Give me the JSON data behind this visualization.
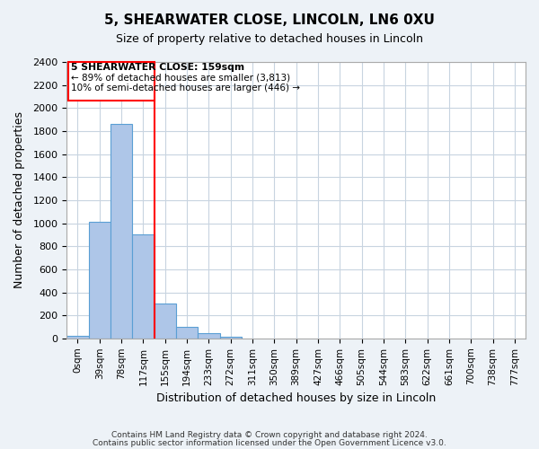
{
  "title1": "5, SHEARWATER CLOSE, LINCOLN, LN6 0XU",
  "title2": "Size of property relative to detached houses in Lincoln",
  "xlabel": "Distribution of detached houses by size in Lincoln",
  "ylabel": "Number of detached properties",
  "footer1": "Contains HM Land Registry data © Crown copyright and database right 2024.",
  "footer2": "Contains public sector information licensed under the Open Government Licence v3.0.",
  "bin_labels": [
    "0sqm",
    "39sqm",
    "78sqm",
    "117sqm",
    "155sqm",
    "194sqm",
    "233sqm",
    "272sqm",
    "311sqm",
    "350sqm",
    "389sqm",
    "427sqm",
    "466sqm",
    "505sqm",
    "544sqm",
    "583sqm",
    "622sqm",
    "661sqm",
    "700sqm",
    "738sqm",
    "777sqm"
  ],
  "bar_values": [
    20,
    1010,
    1860,
    900,
    300,
    100,
    45,
    15,
    0,
    0,
    0,
    0,
    0,
    0,
    0,
    0,
    0,
    0,
    0,
    0,
    0
  ],
  "bar_color": "#aec6e8",
  "bar_edge_color": "#5a9fd4",
  "vline_pos": 3.5,
  "vline_color": "red",
  "ylim": [
    0,
    2400
  ],
  "yticks": [
    0,
    200,
    400,
    600,
    800,
    1000,
    1200,
    1400,
    1600,
    1800,
    2000,
    2200,
    2400
  ],
  "annotation_title": "5 SHEARWATER CLOSE: 159sqm",
  "annotation_line1": "← 89% of detached houses are smaller (3,813)",
  "annotation_line2": "10% of semi-detached houses are larger (446) →",
  "box_color": "red",
  "background_color": "#edf2f7",
  "plot_bg_color": "#ffffff",
  "grid_color": "#c8d4e0"
}
